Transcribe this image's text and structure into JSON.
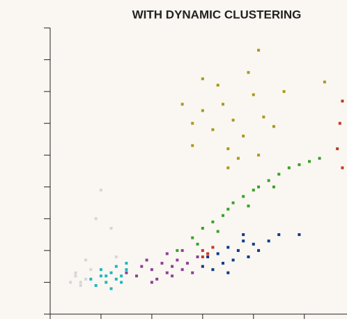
{
  "chart_data": {
    "type": "scatter",
    "title": "WITH DYNAMIC CLUSTERING",
    "xlim": [
      0,
      5.84
    ],
    "ylim": [
      0,
      9
    ],
    "xticks": [
      0,
      1,
      2,
      3,
      4,
      5
    ],
    "yticks": [
      0,
      1,
      2,
      3,
      4,
      5,
      6,
      7,
      8,
      9
    ],
    "series": [
      {
        "color": "#d6d6d6",
        "x": [
          0.4,
          0.5,
          0.6,
          0.7,
          0.5,
          0.8,
          0.6,
          1.0,
          0.9,
          0.7,
          1.2,
          1.3
        ],
        "y": [
          1.0,
          1.2,
          0.9,
          1.1,
          1.3,
          1.4,
          1.0,
          3.9,
          3.0,
          1.7,
          2.7,
          1.8
        ]
      },
      {
        "color": "#22b5bf",
        "x": [
          0.8,
          0.9,
          1.0,
          1.1,
          1.2,
          1.3,
          1.4,
          1.5,
          1.0,
          1.2,
          1.3,
          1.4,
          1.1,
          1.5
        ],
        "y": [
          1.1,
          0.9,
          1.2,
          1.0,
          1.3,
          1.1,
          1.2,
          1.4,
          1.4,
          0.8,
          1.5,
          1.0,
          1.2,
          1.6
        ]
      },
      {
        "color": "#8e3f96",
        "x": [
          1.5,
          1.7,
          1.8,
          2.0,
          2.1,
          2.2,
          2.3,
          2.4,
          2.5,
          2.6,
          2.7,
          2.8,
          2.9,
          2.0,
          2.3,
          2.6,
          1.9,
          2.4
        ],
        "y": [
          1.3,
          1.2,
          1.5,
          1.4,
          1.1,
          1.6,
          1.3,
          1.5,
          1.7,
          1.4,
          1.6,
          1.3,
          1.8,
          1.0,
          1.9,
          2.0,
          1.7,
          1.2
        ]
      },
      {
        "color": "#0a3a8a",
        "x": [
          3.0,
          3.1,
          3.2,
          3.3,
          3.4,
          3.5,
          3.6,
          3.7,
          3.8,
          3.9,
          4.0,
          4.1,
          4.3,
          4.5,
          3.5,
          3.8,
          4.9
        ],
        "y": [
          1.5,
          1.8,
          1.4,
          1.9,
          1.6,
          2.1,
          1.7,
          2.0,
          2.3,
          1.8,
          2.2,
          2.0,
          2.3,
          2.5,
          1.3,
          2.5,
          2.5
        ]
      },
      {
        "color": "#c0392b",
        "x": [
          3.0,
          3.1,
          3.2,
          3.0,
          5.75,
          5.7,
          5.65,
          5.75
        ],
        "y": [
          2.0,
          1.9,
          2.1,
          1.8,
          6.7,
          6.0,
          5.2,
          4.6
        ]
      },
      {
        "color": "#3aa02a",
        "x": [
          2.5,
          2.8,
          3.0,
          3.2,
          3.4,
          3.5,
          3.6,
          3.8,
          4.0,
          4.1,
          4.3,
          4.5,
          4.7,
          4.9,
          5.1,
          3.3,
          3.9,
          4.4,
          2.9,
          5.3
        ],
        "y": [
          2.0,
          2.4,
          2.7,
          2.9,
          3.1,
          3.3,
          3.5,
          3.7,
          3.9,
          4.0,
          4.2,
          4.4,
          4.6,
          4.7,
          4.8,
          2.6,
          3.4,
          4.0,
          2.2,
          4.9
        ]
      },
      {
        "color": "#a99a1c",
        "x": [
          2.8,
          3.0,
          3.2,
          3.4,
          3.5,
          3.6,
          3.8,
          4.0,
          4.2,
          4.4,
          4.6,
          3.3,
          3.7,
          4.1,
          3.9,
          2.6,
          3.5,
          4.1,
          5.4,
          3.0,
          2.8
        ],
        "y": [
          6.0,
          6.4,
          5.8,
          6.6,
          5.2,
          6.1,
          5.6,
          6.9,
          6.2,
          5.9,
          7.0,
          7.2,
          4.9,
          5.0,
          7.6,
          6.6,
          4.6,
          8.3,
          7.3,
          7.4,
          5.3
        ]
      }
    ]
  }
}
